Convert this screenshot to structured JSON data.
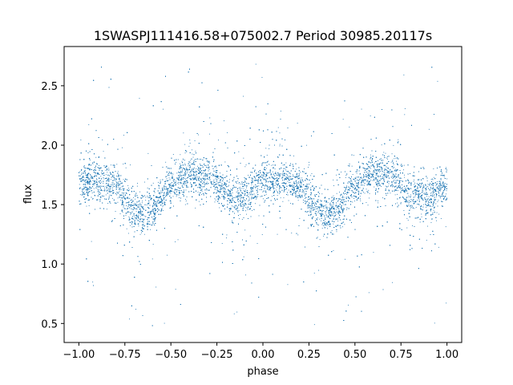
{
  "chart_data": {
    "type": "scatter",
    "title": "1SWASPJ111416.58+075002.7 Period 30985.20117s",
    "xlabel": "phase",
    "ylabel": "flux",
    "xlim": [
      -1.08,
      1.08
    ],
    "ylim": [
      0.34,
      2.83
    ],
    "xticks": [
      -1.0,
      -0.75,
      -0.5,
      -0.25,
      0.0,
      0.25,
      0.5,
      0.75,
      1.0
    ],
    "xtick_labels": [
      "−1.00",
      "−0.75",
      "−0.50",
      "−0.25",
      "0.00",
      "0.25",
      "0.50",
      "0.75",
      "1.00"
    ],
    "yticks": [
      0.5,
      1.0,
      1.5,
      2.0,
      2.5
    ],
    "ytick_labels": [
      "0.5",
      "1.0",
      "1.5",
      "2.0",
      "2.5"
    ],
    "grid": false,
    "marker_color": "#1f77b4",
    "phase_curve": {
      "phase": [
        -1.0,
        -0.9,
        -0.8,
        -0.7,
        -0.65,
        -0.6,
        -0.5,
        -0.4,
        -0.3,
        -0.2,
        -0.1,
        0.0,
        0.1,
        0.2,
        0.3,
        0.35,
        0.4,
        0.5,
        0.6,
        0.7,
        0.8,
        0.9,
        1.0
      ],
      "flux": [
        1.7,
        1.71,
        1.65,
        1.47,
        1.42,
        1.47,
        1.65,
        1.76,
        1.74,
        1.59,
        1.56,
        1.7,
        1.71,
        1.65,
        1.47,
        1.42,
        1.47,
        1.65,
        1.76,
        1.74,
        1.59,
        1.56,
        1.66
      ]
    },
    "approx_point_count": 14000
  }
}
